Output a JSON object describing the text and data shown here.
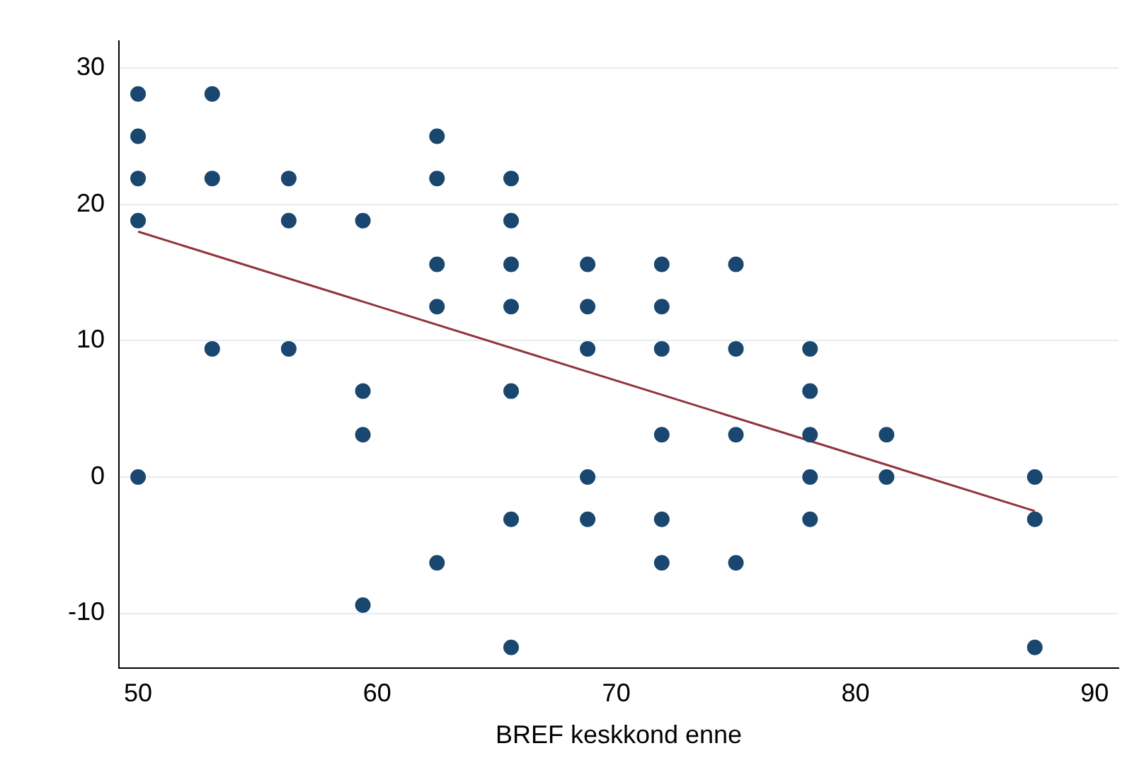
{
  "chart_data": {
    "type": "scatter",
    "xlabel": "BREF keskkond enne",
    "xlim": [
      49.2,
      91
    ],
    "xticks": [
      50,
      60,
      70,
      80,
      90
    ],
    "ylim": [
      -14,
      32
    ],
    "yticks": [
      -10,
      0,
      10,
      20,
      30
    ],
    "grid": "y",
    "legend": false,
    "marker": "circle",
    "series": [
      {
        "type": "scatter",
        "color": "#1a476f",
        "x": [
          50,
          50,
          50,
          50,
          50,
          53.1,
          53.1,
          53.1,
          56.3,
          56.3,
          56.3,
          59.4,
          59.4,
          59.4,
          59.4,
          62.5,
          62.5,
          62.5,
          62.5,
          62.5,
          65.6,
          65.6,
          65.6,
          65.6,
          65.6,
          65.6,
          65.6,
          68.8,
          68.8,
          68.8,
          68.8,
          68.8,
          71.9,
          71.9,
          71.9,
          71.9,
          71.9,
          71.9,
          75,
          75,
          75,
          75,
          78.1,
          78.1,
          78.1,
          78.1,
          78.1,
          81.3,
          81.3,
          87.5,
          87.5,
          87.5
        ],
        "values": [
          28.1,
          25,
          21.9,
          18.8,
          0,
          28.1,
          21.9,
          9.4,
          21.9,
          18.8,
          9.4,
          18.8,
          6.3,
          3.1,
          -9.4,
          25,
          21.9,
          15.6,
          12.5,
          -6.3,
          21.9,
          18.8,
          15.6,
          12.5,
          6.3,
          -3.1,
          -12.5,
          15.6,
          12.5,
          9.4,
          0,
          -3.1,
          15.6,
          12.5,
          9.4,
          3.1,
          -3.1,
          -6.3,
          15.6,
          9.4,
          3.1,
          -6.3,
          9.4,
          6.3,
          3.1,
          0,
          -3.1,
          3.1,
          0,
          0,
          -3.1,
          -12.5
        ]
      },
      {
        "type": "line",
        "color": "#90353b",
        "x": [
          50,
          87.5
        ],
        "values": [
          18,
          -2.5
        ],
        "marker": "none"
      }
    ]
  }
}
